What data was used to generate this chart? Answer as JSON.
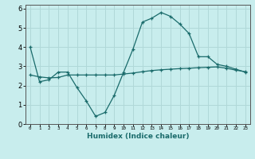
{
  "xlabel": "Humidex (Indice chaleur)",
  "ylabel": "",
  "background_color": "#c8eded",
  "grid_color": "#b0d8d8",
  "line_color": "#1a6b6b",
  "x_values": [
    0,
    1,
    2,
    3,
    4,
    5,
    6,
    7,
    8,
    9,
    10,
    11,
    12,
    13,
    14,
    15,
    16,
    17,
    18,
    19,
    20,
    21,
    22,
    23
  ],
  "y_curve": [
    4.0,
    2.2,
    2.3,
    2.7,
    2.7,
    1.9,
    1.2,
    0.4,
    0.6,
    1.5,
    2.7,
    3.9,
    5.3,
    5.5,
    5.8,
    5.6,
    5.2,
    4.7,
    3.5,
    3.5,
    3.1,
    3.0,
    2.85,
    2.7
  ],
  "y_linear": [
    2.55,
    2.45,
    2.4,
    2.42,
    2.55,
    2.55,
    2.55,
    2.55,
    2.55,
    2.55,
    2.6,
    2.65,
    2.72,
    2.78,
    2.82,
    2.85,
    2.88,
    2.9,
    2.93,
    2.95,
    2.97,
    2.9,
    2.8,
    2.72
  ],
  "ylim": [
    0,
    6.2
  ],
  "xlim": [
    -0.5,
    23.5
  ],
  "yticks": [
    0,
    1,
    2,
    3,
    4,
    5,
    6
  ],
  "xticks": [
    0,
    1,
    2,
    3,
    4,
    5,
    6,
    7,
    8,
    9,
    10,
    11,
    12,
    13,
    14,
    15,
    16,
    17,
    18,
    19,
    20,
    21,
    22,
    23
  ],
  "xtick_labels": [
    "0",
    "1",
    "2",
    "3",
    "4",
    "5",
    "6",
    "7",
    "8",
    "9",
    "10",
    "11",
    "12",
    "13",
    "14",
    "15",
    "16",
    "17",
    "18",
    "19",
    "20",
    "21",
    "22",
    "23"
  ],
  "marker": "+",
  "markersize": 3.5,
  "linewidth": 0.9
}
